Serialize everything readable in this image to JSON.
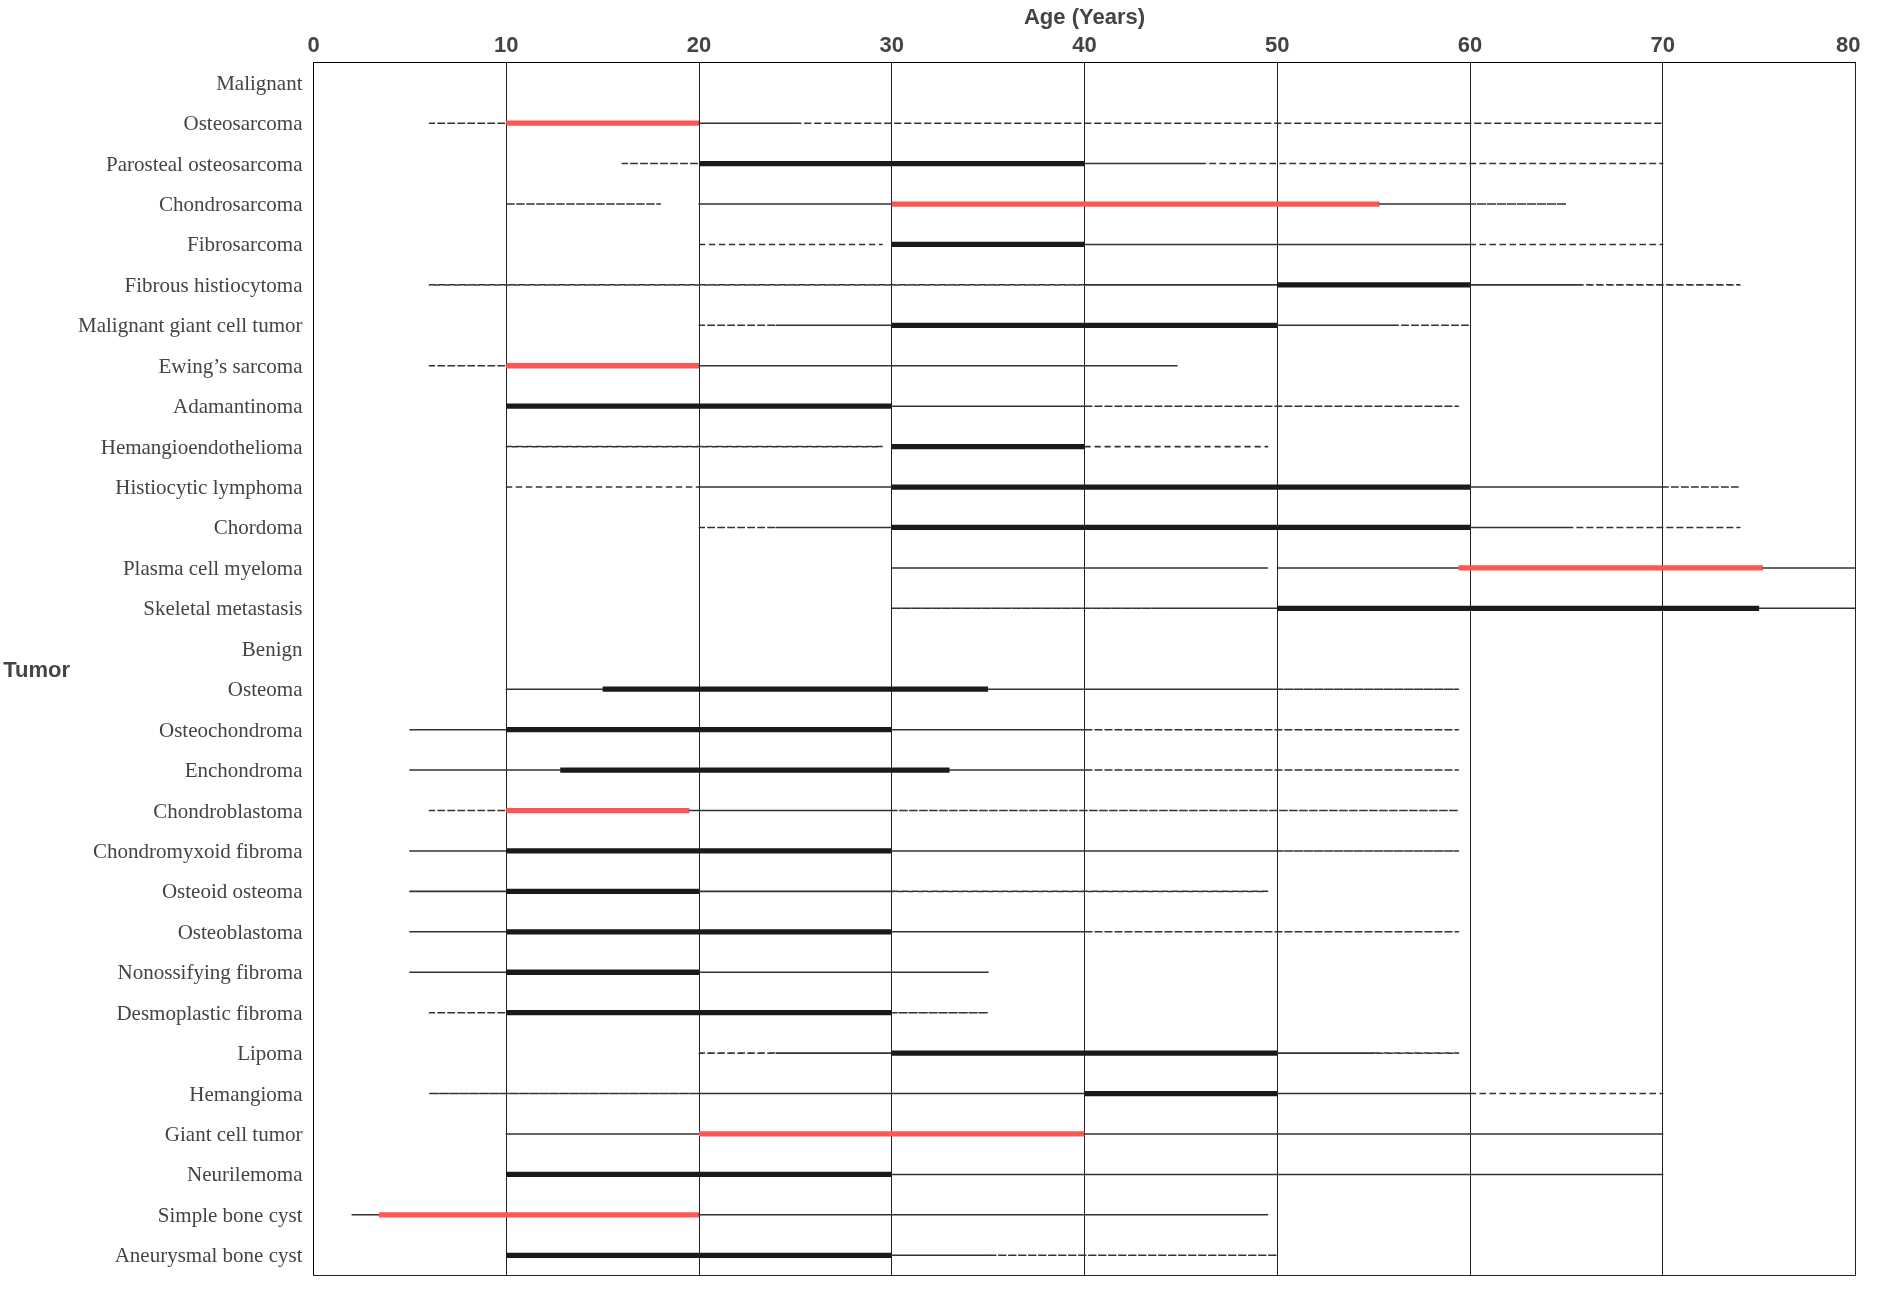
{
  "chart_data": {
    "type": "bar",
    "orientation": "horizontal",
    "xlabel": "Age (Years)",
    "ylabel": "Tumor",
    "categories": [
      "Malignant",
      "Osteosarcoma",
      "Parosteal osteosarcoma",
      "Chondrosarcoma",
      "Fibrosarcoma",
      "Fibrous histiocytoma",
      "Malignant giant cell tumor",
      "Ewing’s sarcoma",
      "Adamantinoma",
      "Hemangioendothelioma",
      "Histiocytic lymphoma",
      "Chordoma",
      "Plasma cell myeloma",
      "Skeletal metastasis",
      "Benign",
      "Osteoma",
      "Osteochondroma",
      "Enchondroma",
      "Chondroblastoma",
      "Chondromyxoid fibroma",
      "Osteoid osteoma",
      "Osteoblastoma",
      "Nonossifying fibroma",
      "Desmoplastic fibroma",
      "Lipoma",
      "Hemangioma",
      "Giant cell tumor",
      "Neurilemoma",
      "Simple bone cyst",
      "Aneurysmal bone cyst"
    ],
    "xlim": [
      0,
      80
    ],
    "xticks": [
      0,
      10,
      20,
      30,
      40,
      50,
      60,
      70,
      80
    ],
    "grid": "x",
    "series": [
      {
        "color": "#333333",
        "line_style": "dashed",
        "base": [
          null,
          6,
          16,
          10,
          20,
          6,
          20,
          6,
          null,
          10,
          10,
          20,
          30,
          30,
          null,
          null,
          null,
          null,
          6,
          null,
          null,
          null,
          null,
          6,
          20,
          6,
          null,
          null,
          null,
          null
        ],
        "values": [
          null,
          4,
          4,
          8,
          9.5,
          34,
          4,
          4,
          null,
          19.5,
          10,
          4,
          19.5,
          14,
          null,
          null,
          null,
          null,
          4,
          null,
          null,
          null,
          null,
          4,
          4,
          14,
          null,
          null,
          null,
          null
        ]
      },
      {
        "color": "#333333",
        "line_style": "solid",
        "base": [
          null,
          null,
          null,
          20,
          null,
          40,
          24,
          null,
          null,
          null,
          20,
          24,
          50,
          44,
          null,
          10,
          5,
          5,
          null,
          5,
          5,
          5,
          5,
          null,
          24,
          20,
          10,
          null,
          2,
          null
        ],
        "values": [
          null,
          null,
          null,
          10,
          null,
          10,
          6,
          null,
          null,
          null,
          10,
          6,
          9.4,
          6,
          null,
          5,
          5,
          7.8,
          null,
          5,
          5,
          5,
          5,
          null,
          6,
          20,
          10,
          null,
          1.4,
          null
        ]
      },
      {
        "color": "#1a1a1a",
        "base": [
          null,
          null,
          20,
          null,
          30,
          50,
          30,
          null,
          10,
          30,
          30,
          30,
          null,
          50,
          null,
          15,
          10,
          12.8,
          null,
          10,
          10,
          10,
          10,
          10,
          30,
          40,
          null,
          10,
          null,
          10
        ],
        "values": [
          null,
          null,
          20,
          null,
          10,
          10,
          20,
          null,
          20,
          10,
          30,
          30,
          null,
          25,
          null,
          20,
          20,
          20.2,
          null,
          20,
          10,
          20,
          10,
          20,
          20,
          10,
          null,
          20,
          null,
          20
        ]
      },
      {
        "color": "#ff5555",
        "base": [
          null,
          10,
          null,
          30,
          null,
          null,
          null,
          10,
          null,
          null,
          null,
          null,
          59.4,
          null,
          null,
          null,
          null,
          null,
          10,
          null,
          null,
          null,
          null,
          null,
          null,
          null,
          20,
          null,
          3.4,
          null
        ],
        "values": [
          null,
          10,
          null,
          25.3,
          null,
          null,
          null,
          10,
          null,
          null,
          null,
          null,
          15.8,
          null,
          null,
          null,
          null,
          null,
          9.5,
          null,
          null,
          null,
          null,
          null,
          null,
          null,
          20,
          null,
          16.6,
          null
        ]
      },
      {
        "color": "#333333",
        "line_style": "solid",
        "base": [
          null,
          20,
          40,
          55.3,
          40,
          60,
          50,
          20,
          30,
          null,
          60,
          60,
          75.2,
          75,
          null,
          35,
          30,
          33,
          19.5,
          30,
          20,
          30,
          20,
          null,
          50,
          50,
          40,
          30,
          20,
          30
        ],
        "values": [
          null,
          5,
          6,
          4.7,
          20,
          5.5,
          6,
          10,
          10,
          null,
          10,
          5,
          4.8,
          5,
          null,
          15,
          10,
          7,
          10.5,
          20,
          10,
          10,
          2.5,
          null,
          5,
          10,
          10,
          20,
          10,
          5
        ]
      },
      {
        "color": "#333333",
        "line_style": "dashed",
        "base": [
          null,
          25,
          46,
          60,
          60,
          65.5,
          56,
          30,
          40,
          40,
          70,
          65,
          null,
          null,
          null,
          50,
          40,
          40,
          30,
          50,
          30,
          40,
          22.5,
          30,
          55,
          60,
          50,
          50,
          30,
          35
        ],
        "values": [
          null,
          45,
          24,
          5,
          10,
          8.5,
          4,
          14.8,
          19.4,
          9.5,
          4,
          9,
          null,
          null,
          null,
          9.4,
          19.4,
          19.4,
          29.4,
          9.4,
          19.5,
          19.4,
          12.5,
          5,
          4.4,
          10,
          20,
          20,
          19.5,
          15
        ]
      }
    ]
  }
}
